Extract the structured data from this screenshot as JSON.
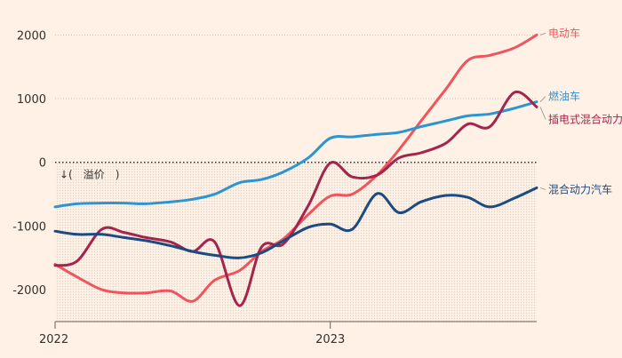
{
  "chart_data": {
    "type": "line",
    "title": "",
    "xlabel": "",
    "ylabel": "",
    "xlim": [
      2022.0,
      2023.75
    ],
    "ylim": [
      -2500,
      2200
    ],
    "y_ticks": [
      {
        "value": 2000,
        "label": "2000"
      },
      {
        "value": 1000,
        "label": "1000"
      },
      {
        "value": 0,
        "label": "0"
      },
      {
        "value": -1000,
        "label": "-1000"
      },
      {
        "value": -2000,
        "label": "-2000"
      }
    ],
    "x_ticks": [
      {
        "value": 2022.0,
        "label": "2022"
      },
      {
        "value": 2023.0,
        "label": "2023"
      }
    ],
    "annotation": "↓(　溢价　)",
    "grid": "horizontal dotted above zero; dotted baseline at 0; dot-texture fill below zero",
    "legend": "direct labels at right end of each line",
    "series": [
      {
        "name": "电动车",
        "color": "#f0555d",
        "points": [
          [
            2022.0,
            -1600
          ],
          [
            2022.08,
            -1800
          ],
          [
            2022.17,
            -2000
          ],
          [
            2022.25,
            -2050
          ],
          [
            2022.33,
            -2050
          ],
          [
            2022.42,
            -2020
          ],
          [
            2022.5,
            -2180
          ],
          [
            2022.58,
            -1850
          ],
          [
            2022.67,
            -1700
          ],
          [
            2022.75,
            -1400
          ],
          [
            2022.83,
            -1200
          ],
          [
            2022.92,
            -820
          ],
          [
            2023.0,
            -530
          ],
          [
            2023.08,
            -500
          ],
          [
            2023.17,
            -200
          ],
          [
            2023.25,
            200
          ],
          [
            2023.33,
            650
          ],
          [
            2023.42,
            1150
          ],
          [
            2023.5,
            1600
          ],
          [
            2023.58,
            1680
          ],
          [
            2023.67,
            1800
          ],
          [
            2023.75,
            2000
          ]
        ]
      },
      {
        "name": "燃油车",
        "color": "#2d94d4",
        "points": [
          [
            2022.0,
            -700
          ],
          [
            2022.08,
            -650
          ],
          [
            2022.17,
            -640
          ],
          [
            2022.25,
            -640
          ],
          [
            2022.33,
            -650
          ],
          [
            2022.42,
            -620
          ],
          [
            2022.5,
            -580
          ],
          [
            2022.58,
            -500
          ],
          [
            2022.67,
            -320
          ],
          [
            2022.75,
            -270
          ],
          [
            2022.83,
            -150
          ],
          [
            2022.92,
            70
          ],
          [
            2023.0,
            380
          ],
          [
            2023.08,
            400
          ],
          [
            2023.17,
            440
          ],
          [
            2023.25,
            470
          ],
          [
            2023.33,
            560
          ],
          [
            2023.42,
            650
          ],
          [
            2023.5,
            730
          ],
          [
            2023.58,
            760
          ],
          [
            2023.67,
            850
          ],
          [
            2023.75,
            950
          ]
        ]
      },
      {
        "name": "插电式混合动力汽车",
        "color": "#a4244c",
        "points": [
          [
            2022.0,
            -1620
          ],
          [
            2022.08,
            -1550
          ],
          [
            2022.17,
            -1050
          ],
          [
            2022.25,
            -1100
          ],
          [
            2022.33,
            -1180
          ],
          [
            2022.42,
            -1250
          ],
          [
            2022.5,
            -1400
          ],
          [
            2022.58,
            -1250
          ],
          [
            2022.67,
            -2250
          ],
          [
            2022.75,
            -1330
          ],
          [
            2022.83,
            -1280
          ],
          [
            2022.92,
            -680
          ],
          [
            2023.0,
            -10
          ],
          [
            2023.08,
            -230
          ],
          [
            2023.17,
            -200
          ],
          [
            2023.25,
            70
          ],
          [
            2023.33,
            150
          ],
          [
            2023.42,
            300
          ],
          [
            2023.5,
            600
          ],
          [
            2023.58,
            560
          ],
          [
            2023.67,
            1100
          ],
          [
            2023.75,
            870
          ]
        ]
      },
      {
        "name": "混合动力汽车",
        "color": "#1c4b82",
        "points": [
          [
            2022.0,
            -1080
          ],
          [
            2022.08,
            -1130
          ],
          [
            2022.17,
            -1130
          ],
          [
            2022.25,
            -1180
          ],
          [
            2022.33,
            -1230
          ],
          [
            2022.42,
            -1310
          ],
          [
            2022.5,
            -1400
          ],
          [
            2022.58,
            -1460
          ],
          [
            2022.67,
            -1500
          ],
          [
            2022.75,
            -1420
          ],
          [
            2022.83,
            -1230
          ],
          [
            2022.92,
            -1020
          ],
          [
            2023.0,
            -970
          ],
          [
            2023.08,
            -1050
          ],
          [
            2023.17,
            -490
          ],
          [
            2023.25,
            -790
          ],
          [
            2023.33,
            -620
          ],
          [
            2023.42,
            -520
          ],
          [
            2023.5,
            -550
          ],
          [
            2023.58,
            -700
          ],
          [
            2023.67,
            -560
          ],
          [
            2023.75,
            -400
          ]
        ]
      }
    ]
  }
}
